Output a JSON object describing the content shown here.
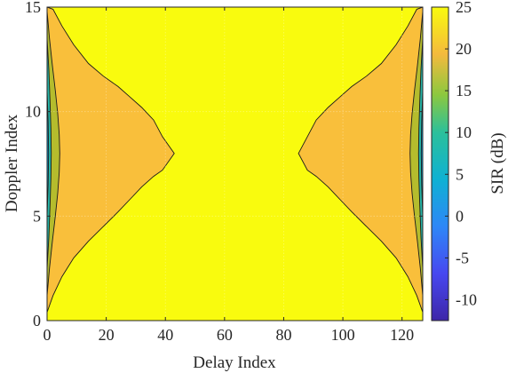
{
  "chart_data": {
    "type": "heatmap",
    "subtype": "filled-contour",
    "xlabel": "Delay Index",
    "ylabel": "Doppler Index",
    "colorbar_label": "SIR (dB)",
    "xlim": [
      0,
      127
    ],
    "ylim": [
      0,
      15
    ],
    "x_ticks": [
      0,
      20,
      40,
      60,
      80,
      100,
      120
    ],
    "y_ticks": [
      0,
      5,
      10,
      15
    ],
    "clim": [
      -12.5,
      25
    ],
    "colorbar_ticks": [
      25,
      20,
      15,
      10,
      5,
      0,
      -5,
      -10
    ],
    "colormap": "parula",
    "grid": true,
    "background_level": 25,
    "contour_levels": [
      {
        "level": 20,
        "color": "#f9bf3b",
        "left_x": [
          0,
          2,
          5,
          9,
          14,
          19,
          24,
          28,
          32,
          36,
          39,
          43,
          39,
          36,
          32,
          28,
          24,
          19,
          14,
          9,
          5,
          2,
          0
        ],
        "right_x": [
          127,
          125,
          122,
          118,
          113,
          108,
          103,
          99,
          95,
          91,
          88,
          85,
          88,
          91,
          95,
          99,
          103,
          108,
          113,
          118,
          122,
          125,
          127
        ],
        "y": [
          0.4,
          1.2,
          2.1,
          3.0,
          3.8,
          4.5,
          5.2,
          5.8,
          6.4,
          6.9,
          7.2,
          8.0,
          8.8,
          9.6,
          10.2,
          10.7,
          11.2,
          11.7,
          12.3,
          13.2,
          14.1,
          14.9,
          15.0
        ]
      },
      {
        "level": 15,
        "color": "#b5bc2d",
        "left_x": [
          0,
          0.8,
          1.8,
          2.8,
          3.6,
          4.1,
          4.3,
          4.1,
          3.6,
          2.8,
          1.8,
          0.8,
          0
        ],
        "right_x": [
          127,
          126.2,
          125.2,
          124.2,
          123.4,
          122.9,
          122.7,
          122.9,
          123.4,
          124.2,
          125.2,
          126.2,
          127
        ],
        "y": [
          1.2,
          2.5,
          3.8,
          5.0,
          6.1,
          7.1,
          8.0,
          8.9,
          9.9,
          11.0,
          12.2,
          13.5,
          14.8
        ]
      },
      {
        "level": 10,
        "color": "#27b4a6",
        "left_x": [
          0,
          0.6,
          1.0,
          1.3,
          1.4,
          1.3,
          1.0,
          0.6,
          0
        ],
        "right_x": [
          127,
          126.4,
          126.0,
          125.7,
          125.6,
          125.7,
          126.0,
          126.4,
          127
        ],
        "y": [
          2.5,
          4.0,
          5.5,
          6.8,
          8.0,
          9.2,
          10.5,
          12.0,
          13.5
        ]
      },
      {
        "level": 5,
        "color": "#0d9bd8",
        "left_x": [
          0,
          0.35,
          0.5,
          0.35,
          0
        ],
        "right_x": [
          127,
          126.65,
          126.5,
          126.65,
          127
        ],
        "y": [
          5.0,
          6.5,
          8.0,
          9.5,
          11.0
        ]
      }
    ]
  }
}
